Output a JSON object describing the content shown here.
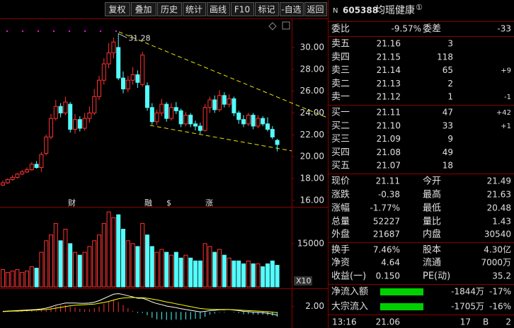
{
  "toolbar": [
    "复权",
    "叠加",
    "历史",
    "统计",
    "画线",
    "F10",
    "标记",
    "-自选",
    "返回"
  ],
  "events": [
    "财",
    "融",
    "$",
    "涨"
  ],
  "chart_data": [
    {
      "type": "candlestick",
      "ylim": [
        15.4,
        32.4
      ],
      "yticks": [
        {
          "value": 16,
          "label": "16.00"
        },
        {
          "value": 18,
          "label": "18.00"
        },
        {
          "value": 20,
          "label": "20.00"
        },
        {
          "value": 22,
          "label": "22.00"
        },
        {
          "value": 24,
          "label": "24.00"
        },
        {
          "value": 26,
          "label": "26.00"
        },
        {
          "value": 28,
          "label": "28.00"
        },
        {
          "value": 30,
          "label": "30.00"
        }
      ],
      "up_color": "#ff3232",
      "down_color": "#54fcfc",
      "peak_index": 24,
      "open": [
        17.4,
        17.6,
        17.9,
        18.1,
        18.4,
        18.6,
        18.8,
        19.3,
        19.0,
        20.3,
        21.8,
        23.5,
        24.6,
        24.0,
        24.8,
        22.5,
        23.4,
        22.6,
        23.5,
        24.0,
        25.5,
        27.0,
        28.5,
        29.5,
        30.0,
        27.2,
        26.2,
        27.0,
        27.5,
        26.6,
        26.5,
        24.5,
        23.2,
        24.0,
        24.8,
        23.5,
        24.5,
        24.2,
        23.0,
        23.8,
        23.0,
        22.8,
        22.4,
        24.5,
        25.2,
        24.3,
        25.6,
        24.8,
        25.3,
        24.0,
        23.4,
        23.0,
        23.8,
        22.8,
        23.5,
        23.0,
        22.5,
        21.49
      ],
      "close": [
        17.6,
        17.9,
        18.1,
        18.4,
        18.6,
        18.8,
        19.3,
        19.0,
        20.2,
        21.8,
        23.5,
        24.6,
        24.0,
        25.0,
        22.5,
        23.4,
        22.6,
        23.5,
        24.0,
        25.5,
        27.0,
        28.5,
        29.5,
        30.5,
        27.2,
        26.2,
        27.0,
        27.5,
        26.8,
        29.3,
        24.5,
        23.2,
        24.0,
        24.8,
        23.5,
        24.5,
        24.2,
        23.0,
        23.8,
        23.0,
        22.8,
        22.4,
        24.5,
        25.2,
        24.3,
        25.6,
        24.8,
        25.3,
        24.0,
        23.4,
        23.0,
        23.8,
        22.8,
        23.5,
        23.0,
        22.5,
        21.8,
        21.11
      ],
      "high": [
        17.8,
        18.0,
        18.3,
        18.5,
        18.8,
        19.0,
        19.5,
        19.6,
        20.4,
        22.0,
        23.9,
        25.2,
        24.9,
        25.5,
        25.0,
        23.9,
        23.7,
        24.0,
        24.6,
        26.2,
        27.4,
        29.0,
        30.4,
        30.9,
        31.28,
        27.8,
        27.4,
        28.2,
        27.9,
        29.6,
        26.8,
        24.9,
        24.3,
        25.3,
        25.0,
        24.9,
        25.0,
        24.4,
        24.1,
        24.0,
        23.3,
        23.1,
        24.8,
        25.5,
        25.6,
        26.1,
        25.9,
        25.7,
        25.5,
        24.2,
        23.8,
        24.0,
        24.0,
        23.8,
        23.7,
        23.6,
        22.8,
        21.63
      ],
      "low": [
        17.3,
        17.5,
        17.8,
        18.0,
        18.3,
        18.5,
        18.7,
        18.9,
        18.6,
        20.1,
        21.6,
        23.3,
        23.6,
        23.8,
        22.2,
        22.1,
        22.3,
        22.4,
        23.1,
        23.8,
        25.2,
        26.6,
        28.1,
        29.0,
        27.0,
        25.8,
        25.9,
        26.6,
        26.3,
        26.4,
        24.2,
        22.9,
        22.9,
        23.7,
        23.2,
        23.3,
        23.9,
        22.7,
        22.8,
        22.7,
        22.4,
        22.1,
        22.3,
        24.0,
        24.0,
        24.1,
        24.5,
        24.5,
        23.7,
        23.0,
        22.7,
        22.8,
        22.5,
        22.6,
        22.8,
        22.3,
        21.6,
        20.48
      ]
    },
    {
      "type": "bar",
      "ylim": [
        0,
        27000
      ],
      "yticks": [
        15000
      ],
      "unit_label": "X10",
      "values": [
        6000,
        5000,
        5500,
        6000,
        5000,
        5500,
        7000,
        6500,
        12000,
        16000,
        18000,
        22000,
        16000,
        20000,
        15000,
        12000,
        11000,
        12000,
        14000,
        16000,
        18000,
        22000,
        26000,
        24000,
        25000,
        20000,
        16000,
        15000,
        14000,
        22000,
        18000,
        14000,
        12000,
        13000,
        12000,
        11000,
        12000,
        10000,
        11000,
        10000,
        9000,
        9000,
        15000,
        14000,
        12000,
        13000,
        11000,
        10000,
        9000,
        9000,
        8000,
        9000,
        8000,
        8000,
        7000,
        8000,
        9000,
        7500
      ]
    },
    {
      "type": "macd",
      "ylim": [
        -6,
        8
      ],
      "yticks": [
        {
          "value": 2,
          "label": "2.00"
        }
      ],
      "dif_color": "#ffffff",
      "dea_color": "#ffff00",
      "dif": [
        0.2,
        0.3,
        0.4,
        0.5,
        0.6,
        0.7,
        0.8,
        0.9,
        1.1,
        1.4,
        1.9,
        2.5,
        2.9,
        3.3,
        3.3,
        3.3,
        3.2,
        3.2,
        3.3,
        3.6,
        4.2,
        5.0,
        5.8,
        6.6,
        6.8,
        6.5,
        6.0,
        5.6,
        5.1,
        5.1,
        4.5,
        3.7,
        3.1,
        2.7,
        2.2,
        1.9,
        1.6,
        1.2,
        0.9,
        0.6,
        0.3,
        0.0,
        0.2,
        0.5,
        0.6,
        0.8,
        0.8,
        0.9,
        0.7,
        0.5,
        0.2,
        0.1,
        -0.1,
        -0.2,
        -0.3,
        -0.5,
        -0.8,
        -1.2
      ],
      "dea": [
        0.1,
        0.2,
        0.3,
        0.3,
        0.4,
        0.5,
        0.6,
        0.7,
        0.8,
        0.9,
        1.1,
        1.4,
        1.7,
        2.0,
        2.3,
        2.5,
        2.6,
        2.7,
        2.8,
        2.9,
        3.2,
        3.5,
        3.9,
        4.4,
        4.9,
        5.2,
        5.3,
        5.4,
        5.3,
        5.3,
        5.1,
        4.8,
        4.5,
        4.1,
        3.7,
        3.4,
        3.0,
        2.7,
        2.3,
        2.0,
        1.6,
        1.3,
        1.1,
        1.0,
        0.9,
        0.9,
        0.9,
        0.9,
        0.8,
        0.7,
        0.6,
        0.5,
        0.4,
        0.3,
        0.2,
        0.1,
        -0.1,
        -0.3
      ],
      "hist": [
        0.2,
        0.2,
        0.2,
        0.4,
        0.4,
        0.4,
        0.4,
        0.4,
        0.6,
        1.0,
        1.6,
        2.2,
        2.4,
        2.6,
        2.0,
        1.6,
        1.2,
        1.0,
        1.0,
        1.4,
        2.0,
        3.0,
        3.8,
        4.4,
        3.8,
        2.6,
        1.4,
        0.4,
        -0.4,
        -0.4,
        -1.2,
        -2.2,
        -2.8,
        -2.8,
        -3.0,
        -3.0,
        -2.8,
        -3.0,
        -2.8,
        -2.8,
        -2.6,
        -2.6,
        -1.8,
        -1.0,
        -0.6,
        -0.2,
        -0.2,
        0.0,
        -0.2,
        -0.4,
        -0.8,
        -0.8,
        -1.0,
        -1.0,
        -1.0,
        -1.2,
        -1.4,
        -1.8
      ]
    }
  ],
  "quote": {
    "header": {
      "flag": "N",
      "code": "605388",
      "name": "均瑶健康",
      "mark": "①"
    },
    "ratio": {
      "label": "委比",
      "value": "-9.57%",
      "label2": "委差",
      "value2": "-33"
    },
    "asks": [
      {
        "label": "卖五",
        "price": "21.16",
        "volume": "3"
      },
      {
        "label": "卖四",
        "price": "21.15",
        "volume": "118"
      },
      {
        "label": "卖三",
        "price": "21.14",
        "volume": "65",
        "change": "+9"
      },
      {
        "label": "卖二",
        "price": "21.13",
        "volume": "2"
      },
      {
        "label": "卖一",
        "price": "21.12",
        "volume": "1",
        "change": "-1"
      }
    ],
    "bids": [
      {
        "label": "买一",
        "price": "21.11",
        "volume": "47",
        "change": "+42"
      },
      {
        "label": "买二",
        "price": "21.10",
        "volume": "33",
        "change": "+1"
      },
      {
        "label": "买三",
        "price": "21.09",
        "volume": "9"
      },
      {
        "label": "买四",
        "price": "21.08",
        "volume": "49"
      },
      {
        "label": "买五",
        "price": "21.07",
        "volume": "18"
      }
    ],
    "stats": [
      [
        {
          "label": "现价",
          "value": "21.11",
          "color": "#00e600"
        },
        {
          "label": "今开",
          "value": "21.49",
          "color": "#e0e0e0"
        }
      ],
      [
        {
          "label": "涨跌",
          "value": "-0.38",
          "color": "#00e600"
        },
        {
          "label": "最高",
          "value": "21.63",
          "color": "#ff3232"
        }
      ],
      [
        {
          "label": "涨幅",
          "value": "-1.77%",
          "color": "#00e600"
        },
        {
          "label": "最低",
          "value": "20.48",
          "color": "#00e600"
        }
      ],
      [
        {
          "label": "总量",
          "value": "52227",
          "color": "#ffff00"
        },
        {
          "label": "量比",
          "value": "1.43",
          "color": "#ff3232"
        }
      ],
      [
        {
          "label": "外盘",
          "value": "21687",
          "color": "#ff3232"
        },
        {
          "label": "内盘",
          "value": "30540",
          "color": "#00e600"
        }
      ],
      [
        {
          "label": "换手",
          "value": "7.46%",
          "color": "#e0e0e0"
        },
        {
          "label": "股本",
          "value": "4.30亿",
          "color": "#e0e0e0"
        }
      ],
      [
        {
          "label": "净资",
          "value": "4.64",
          "color": "#e0e0e0"
        },
        {
          "label": "流通",
          "value": "7000万",
          "color": "#e0e0e0"
        }
      ],
      [
        {
          "label": "收益(一)",
          "value": "0.150",
          "color": "#e0e0e0"
        },
        {
          "label": "PE(动)",
          "value": "35.2",
          "color": "#e0e0e0"
        }
      ]
    ],
    "flows": [
      {
        "label": "净流入额",
        "value": "-1844万",
        "pct": "-17%"
      },
      {
        "label": "大宗流入",
        "value": "-1705万",
        "pct": "-16%"
      }
    ],
    "footer": {
      "time": "13:16",
      "price": "21.06",
      "volume": "17",
      "side": "B",
      "count": "2"
    }
  }
}
